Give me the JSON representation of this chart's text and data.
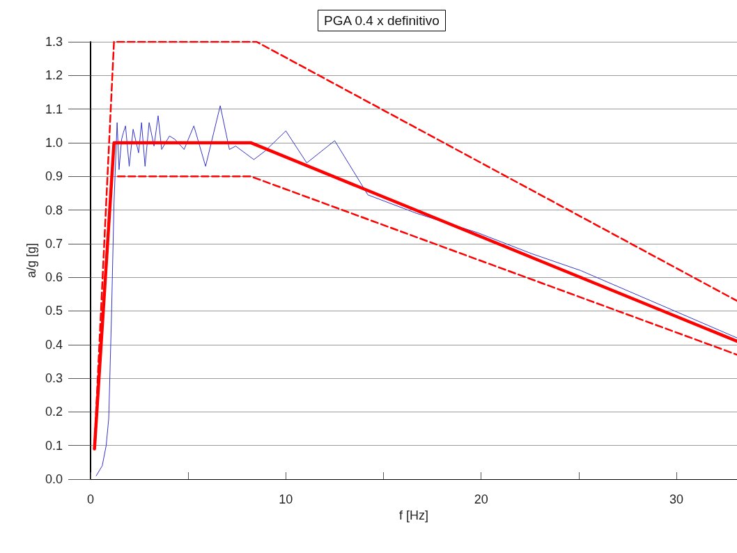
{
  "chart_data": {
    "type": "line",
    "title": "PGA 0.4 x definitivo",
    "xlabel": "f [Hz]",
    "ylabel": "a/g [g]",
    "xlim": [
      0,
      33.1
    ],
    "xticks": [
      0,
      {
        "value": 5,
        "label": null
      },
      10,
      {
        "value": 15,
        "label": null
      },
      20,
      {
        "value": 25,
        "label": null
      },
      30
    ],
    "ylim": [
      0,
      1.3
    ],
    "yticks": [
      {
        "value": 0,
        "label": "0.0"
      },
      0.1,
      0.2,
      0.3,
      0.4,
      0.5,
      0.6,
      0.7,
      0.8,
      0.9,
      {
        "value": 1,
        "label": "1.0"
      },
      1.1,
      1.2,
      1.3
    ],
    "grid": "y",
    "marker": "none",
    "series": [
      {
        "color": "#3333cc",
        "line_style": "solid",
        "x": [
          0.29,
          0.6,
          0.8,
          0.93,
          1.07,
          1.2,
          1.36,
          1.46,
          1.59,
          1.68,
          1.79,
          1.98,
          2.18,
          2.3,
          2.46,
          2.61,
          2.79,
          3.0,
          3.25,
          3.46,
          3.64,
          4.04,
          4.32,
          4.79,
          5.29,
          5.89,
          6.64,
          7.11,
          7.43,
          8.36,
          8.93,
          10.0,
          11.07,
          12.5,
          14.2,
          16.7,
          19.8,
          22.6,
          25.1,
          33.1
        ],
        "values": [
          0.01,
          0.04,
          0.1,
          0.18,
          0.48,
          0.82,
          1.06,
          0.92,
          1.01,
          1.03,
          1.05,
          0.93,
          1.04,
          1.01,
          0.97,
          1.06,
          0.93,
          1.06,
          0.99,
          1.08,
          0.98,
          1.02,
          1.01,
          0.98,
          1.05,
          0.93,
          1.11,
          0.98,
          0.99,
          0.95,
          0.975,
          1.035,
          0.94,
          1.006,
          0.845,
          0.79,
          0.733,
          0.67,
          0.62,
          0.42
        ]
      },
      {
        "color": "#ff0000",
        "line_style": "dashed",
        "x": [
          0.2,
          1.2,
          8.5,
          33.1
        ],
        "values": [
          0.1,
          1.3,
          1.3,
          0.53
        ]
      },
      {
        "color": "#ff0000",
        "line_style": "dashed",
        "x": [
          1.4,
          8.2,
          33.1
        ],
        "values": [
          0.9,
          0.9,
          0.37
        ]
      },
      {
        "color": "#ff0000",
        "line_style": "solid",
        "x": [
          0.2,
          1.2,
          8.2,
          33.1
        ],
        "values": [
          0.09,
          1.0,
          1.0,
          0.41
        ]
      }
    ]
  }
}
